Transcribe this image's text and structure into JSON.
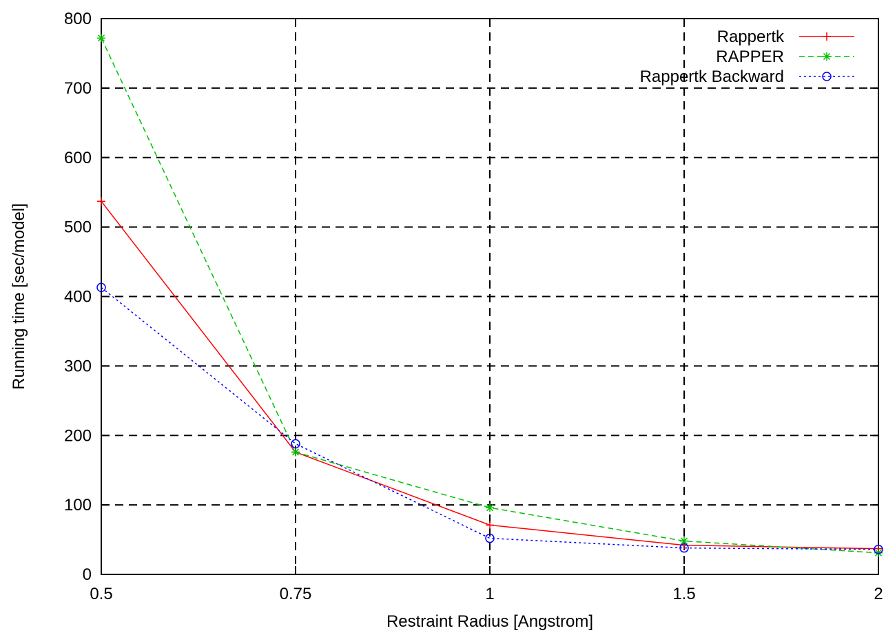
{
  "chart_data": {
    "type": "line",
    "title": "",
    "xlabel": "Restraint Radius [Angstrom]",
    "ylabel": "Running time [sec/model]",
    "categories": [
      "0.5",
      "0.75",
      "1",
      "1.5",
      "2"
    ],
    "ylim": [
      0,
      800
    ],
    "yticks": [
      "0",
      "100",
      "200",
      "300",
      "400",
      "500",
      "600",
      "700",
      "800"
    ],
    "grid": true,
    "legend_position": "top-right",
    "series": [
      {
        "name": "Rappertk",
        "color": "#ff0000",
        "line_style": "solid",
        "marker": "plus",
        "values": [
          537,
          176,
          71,
          42,
          37
        ]
      },
      {
        "name": "RAPPER",
        "color": "#00c000",
        "line_style": "dashed",
        "marker": "star",
        "values": [
          772,
          176,
          96,
          48,
          31
        ]
      },
      {
        "name": "Rappertk Backward",
        "color": "#0000ff",
        "line_style": "dotted",
        "marker": "circle",
        "values": [
          413,
          188,
          52,
          38,
          36
        ]
      }
    ]
  }
}
